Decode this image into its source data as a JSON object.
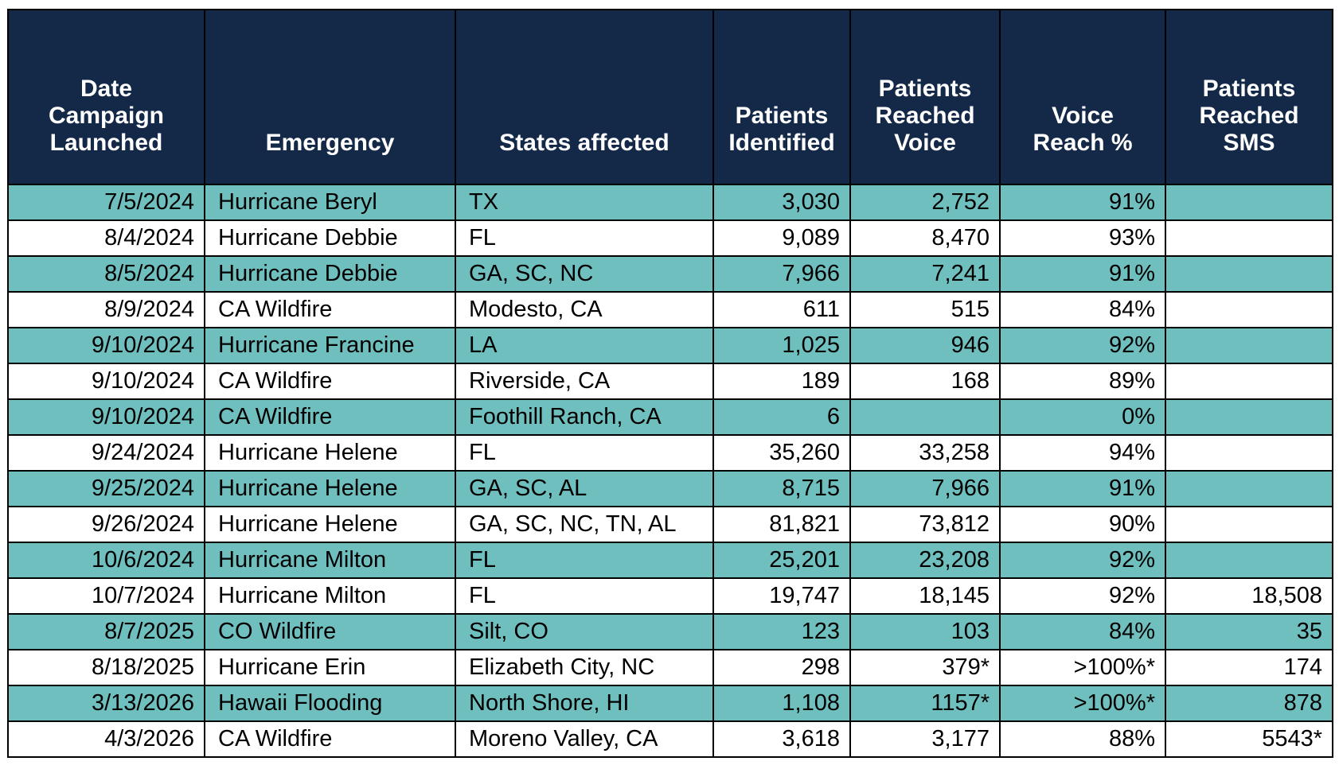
{
  "table": {
    "headers": [
      "Date\nCampaign\nLaunched",
      "Emergency",
      "States affected",
      "Patients\nIdentified",
      "Patients\nReached\nVoice",
      "Voice\nReach %",
      "Patients\nReached\nSMS"
    ],
    "rows": [
      [
        "7/5/2024",
        "Hurricane Beryl",
        "TX",
        "3,030",
        "2,752",
        "91%",
        ""
      ],
      [
        "8/4/2024",
        "Hurricane Debbie",
        "FL",
        "9,089",
        "8,470",
        "93%",
        ""
      ],
      [
        "8/5/2024",
        "Hurricane Debbie",
        "GA, SC, NC",
        "7,966",
        "7,241",
        "91%",
        ""
      ],
      [
        "8/9/2024",
        "CA Wildfire",
        "Modesto, CA",
        "611",
        "515",
        "84%",
        ""
      ],
      [
        "9/10/2024",
        "Hurricane Francine",
        "LA",
        "1,025",
        "946",
        "92%",
        ""
      ],
      [
        "9/10/2024",
        "CA Wildfire",
        "Riverside, CA",
        "189",
        "168",
        "89%",
        ""
      ],
      [
        "9/10/2024",
        "CA Wildfire",
        "Foothill Ranch, CA",
        "6",
        "",
        "0%",
        ""
      ],
      [
        "9/24/2024",
        "Hurricane Helene",
        "FL",
        "35,260",
        "33,258",
        "94%",
        ""
      ],
      [
        "9/25/2024",
        "Hurricane Helene",
        "GA, SC, AL",
        "8,715",
        "7,966",
        "91%",
        ""
      ],
      [
        "9/26/2024",
        "Hurricane Helene",
        "GA, SC, NC, TN, AL",
        "81,821",
        "73,812",
        "90%",
        ""
      ],
      [
        "10/6/2024",
        "Hurricane Milton",
        "FL",
        "25,201",
        "23,208",
        "92%",
        ""
      ],
      [
        "10/7/2024",
        "Hurricane Milton",
        "FL",
        "19,747",
        "18,145",
        "92%",
        "18,508"
      ],
      [
        "8/7/2025",
        "CO Wildfire",
        "Silt, CO",
        "123",
        "103",
        "84%",
        "35"
      ],
      [
        "8/18/2025",
        "Hurricane Erin",
        "Elizabeth City, NC",
        "298",
        "379*",
        ">100%*",
        "174"
      ],
      [
        "3/13/2026",
        "Hawaii Flooding",
        "North Shore, HI",
        "1,108",
        "1157*",
        ">100%*",
        "878"
      ],
      [
        "4/3/2026",
        "CA Wildfire",
        "Moreno Valley, CA",
        "3,618",
        "3,177",
        "88%",
        "5543*"
      ]
    ]
  }
}
